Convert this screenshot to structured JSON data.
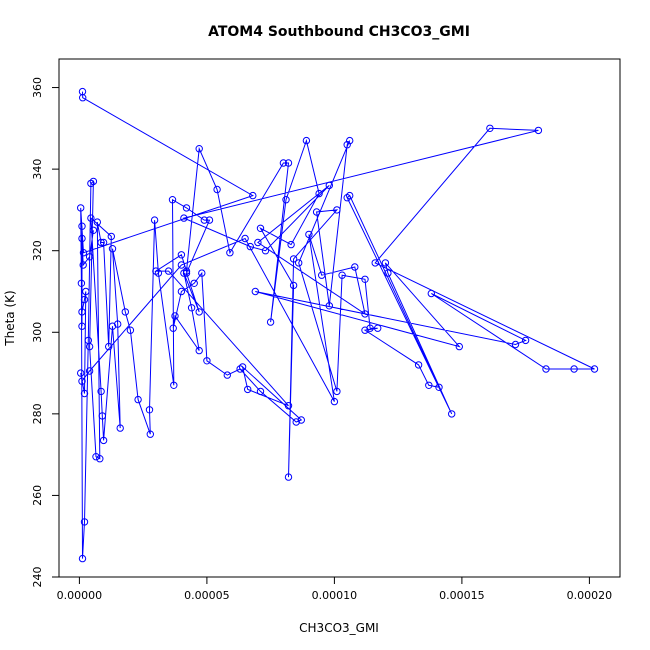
{
  "chart_data": {
    "type": "line",
    "title": "ATOM4 Southbound CH3CO3_GMI",
    "xlabel": "CH3CO3_GMI",
    "ylabel": "Theta (K)",
    "xlim": [
      -8e-06,
      0.000212
    ],
    "ylim": [
      240,
      367
    ],
    "x_ticks": [
      0,
      5e-05,
      0.0001,
      0.00015,
      0.0002
    ],
    "x_tick_labels": [
      "0.00000",
      "0.00005",
      "0.00010",
      "0.00015",
      "0.00020"
    ],
    "y_ticks": [
      240,
      260,
      280,
      300,
      320,
      340,
      360
    ],
    "y_tick_labels": [
      "240",
      "260",
      "280",
      "300",
      "320",
      "340",
      "360"
    ],
    "grid": false,
    "line_color": "#0000ff",
    "marker": "open-circle",
    "series": [
      {
        "points": [
          [
            1.2e-06,
            359.0
          ],
          [
            1.3e-06,
            357.5
          ],
          [
            6.8e-05,
            333.5
          ],
          [
            1.6e-06,
            319.5
          ],
          [
            5e-07,
            330.5
          ],
          [
            8e-07,
            312.0
          ],
          [
            1.2e-06,
            244.5
          ],
          [
            2e-06,
            253.5
          ],
          [
            3.5e-06,
            298.0
          ],
          [
            4.5e-06,
            336.5
          ],
          [
            5.5e-06,
            337.0
          ],
          [
            4e-06,
            296.5
          ],
          [
            6.5e-06,
            269.5
          ],
          [
            8e-06,
            269.0
          ],
          [
            7e-06,
            327.0
          ],
          [
            8.5e-06,
            322.0
          ],
          [
            9.5e-06,
            322.0
          ],
          [
            1.15e-05,
            296.5
          ],
          [
            1.25e-05,
            323.5
          ],
          [
            4.5e-06,
            328.0
          ],
          [
            8.5e-06,
            285.5
          ],
          [
            9e-06,
            279.5
          ],
          [
            9.5e-06,
            273.5
          ],
          [
            1.3e-05,
            301.5
          ],
          [
            1.6e-05,
            276.5
          ],
          [
            1.5e-05,
            302.0
          ],
          [
            1.3e-05,
            320.5
          ],
          [
            1.8e-05,
            305.0
          ],
          [
            2e-05,
            300.5
          ],
          [
            2.3e-05,
            283.5
          ],
          [
            2.78e-05,
            275.0
          ],
          [
            2.75e-05,
            281.0
          ],
          [
            2.95e-05,
            327.5
          ],
          [
            3.1e-05,
            314.5
          ],
          [
            3.7e-05,
            287.0
          ],
          [
            3.65e-05,
            332.5
          ],
          [
            4.2e-05,
            330.5
          ],
          [
            4.9e-05,
            327.5
          ],
          [
            5.1e-05,
            327.5
          ],
          [
            4.2e-05,
            314.5
          ],
          [
            4.7e-05,
            305.0
          ],
          [
            4.1e-05,
            314.5
          ],
          [
            4.4e-05,
            306.0
          ],
          [
            4.7e-05,
            295.5
          ],
          [
            3.75e-05,
            304.0
          ],
          [
            3.68e-05,
            301.0
          ],
          [
            4e-05,
            310.0
          ],
          [
            4.5e-05,
            312.0
          ],
          [
            4.8e-05,
            314.5
          ],
          [
            5e-05,
            293.0
          ],
          [
            5.8e-05,
            289.5
          ],
          [
            6.3e-05,
            291.0
          ],
          [
            7.1e-05,
            285.5
          ],
          [
            8.5e-05,
            278.0
          ],
          [
            8.7e-05,
            278.5
          ],
          [
            6.4e-05,
            291.5
          ],
          [
            6.6e-05,
            286.0
          ],
          [
            8.2e-05,
            282.0
          ],
          [
            3.5e-05,
            315.0
          ],
          [
            3e-05,
            315.0
          ],
          [
            4e-05,
            319.0
          ],
          [
            4.2e-05,
            315.0
          ],
          [
            4.7e-05,
            345.0
          ],
          [
            5.4e-05,
            335.0
          ],
          [
            5.9e-05,
            319.5
          ],
          [
            8e-05,
            341.5
          ],
          [
            8.2e-05,
            341.5
          ],
          [
            7.5e-05,
            302.5
          ],
          [
            8.1e-05,
            332.5
          ],
          [
            8.9e-05,
            347.0
          ],
          [
            9.4e-05,
            334.0
          ],
          [
            8.3e-05,
            321.5
          ],
          [
            7.1e-05,
            325.5
          ],
          [
            8.4e-05,
            311.5
          ],
          [
            8.2e-05,
            264.5
          ],
          [
            8.4e-05,
            318.0
          ],
          [
            0.000101,
            330.0
          ],
          [
            9.3e-05,
            329.5
          ],
          [
            9.8e-05,
            306.5
          ],
          [
            0.000105,
            346.0
          ],
          [
            0.000106,
            347.0
          ],
          [
            8.6e-05,
            317.0
          ],
          [
            0.000101,
            285.5
          ],
          [
            0.000103,
            314.0
          ],
          [
            0.000112,
            313.0
          ],
          [
            0.000114,
            301.0
          ],
          [
            0.000117,
            301.0
          ],
          [
            0.000112,
            300.5
          ],
          [
            0.000133,
            292.0
          ],
          [
            0.000137,
            287.0
          ],
          [
            0.000141,
            286.5
          ],
          [
            0.000106,
            333.5
          ],
          [
            0.000105,
            333.0
          ],
          [
            0.000146,
            280.0
          ],
          [
            0.000121,
            314.5
          ],
          [
            0.00012,
            317.0
          ],
          [
            0.000149,
            296.5
          ],
          [
            6.9e-05,
            310.0
          ],
          [
            0.000171,
            297.0
          ],
          [
            0.000175,
            298.0
          ],
          [
            0.000138,
            309.5
          ],
          [
            0.000183,
            291.0
          ],
          [
            0.000194,
            291.0
          ],
          [
            0.000202,
            291.0
          ],
          [
            0.000116,
            317.0
          ],
          [
            0.000161,
            350.0
          ],
          [
            0.00018,
            349.5
          ],
          [
            4.1e-05,
            328.0
          ],
          [
            6.7e-05,
            321.0
          ],
          [
            7.3e-05,
            320.0
          ],
          [
            9.8e-05,
            336.0
          ],
          [
            7e-05,
            322.0
          ],
          [
            0.000112,
            304.5
          ],
          [
            0.000108,
            316.0
          ],
          [
            9.5e-05,
            314.0
          ],
          [
            9e-05,
            324.0
          ],
          [
            0.0001,
            283.0
          ],
          [
            6.5e-05,
            323.0
          ],
          [
            4e-05,
            316.5
          ],
          [
            4e-06,
            290.5
          ],
          [
            1e-06,
            288.0
          ],
          [
            5e-07,
            290.0
          ],
          [
            2e-06,
            285.0
          ],
          [
            2.5e-06,
            310.0
          ],
          [
            2e-06,
            308.0
          ],
          [
            1e-06,
            305.0
          ],
          [
            1e-06,
            301.5
          ],
          [
            1e-06,
            326.0
          ],
          [
            1e-06,
            323.0
          ],
          [
            1.5e-06,
            316.5
          ],
          [
            4e-06,
            318.5
          ],
          [
            5.5e-06,
            325.0
          ]
        ]
      }
    ]
  }
}
